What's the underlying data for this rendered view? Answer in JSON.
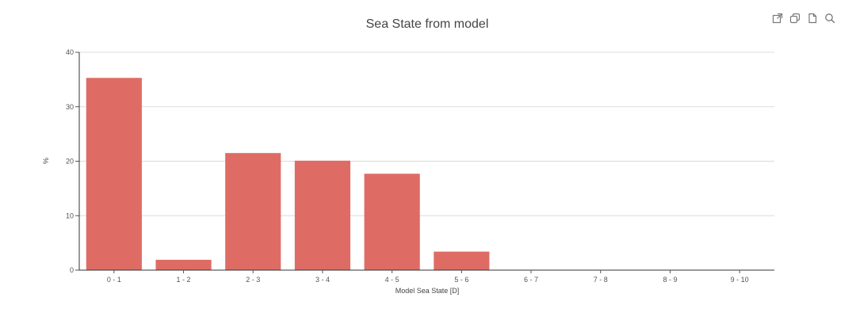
{
  "toolbar": {
    "icons": [
      "external-link-icon",
      "copy-icon",
      "document-icon",
      "search-icon"
    ]
  },
  "colors": {
    "bar": "#de6c65",
    "grid": "#dcdcdc",
    "axis": "#333333"
  },
  "chart_data": {
    "type": "bar",
    "title": "Sea State from model",
    "xlabel": "Model Sea State [D]",
    "ylabel": "%",
    "ylim": [
      0,
      40
    ],
    "yticks": [
      0,
      10,
      20,
      30,
      40
    ],
    "grid": true,
    "categories": [
      "0 - 1",
      "1 - 2",
      "2 - 3",
      "3 - 4",
      "4 - 5",
      "5 - 6",
      "6 - 7",
      "7 - 8",
      "8 - 9",
      "9 - 10"
    ],
    "values": [
      35.3,
      1.9,
      21.5,
      20.1,
      17.7,
      3.4,
      0,
      0,
      0,
      0
    ]
  }
}
